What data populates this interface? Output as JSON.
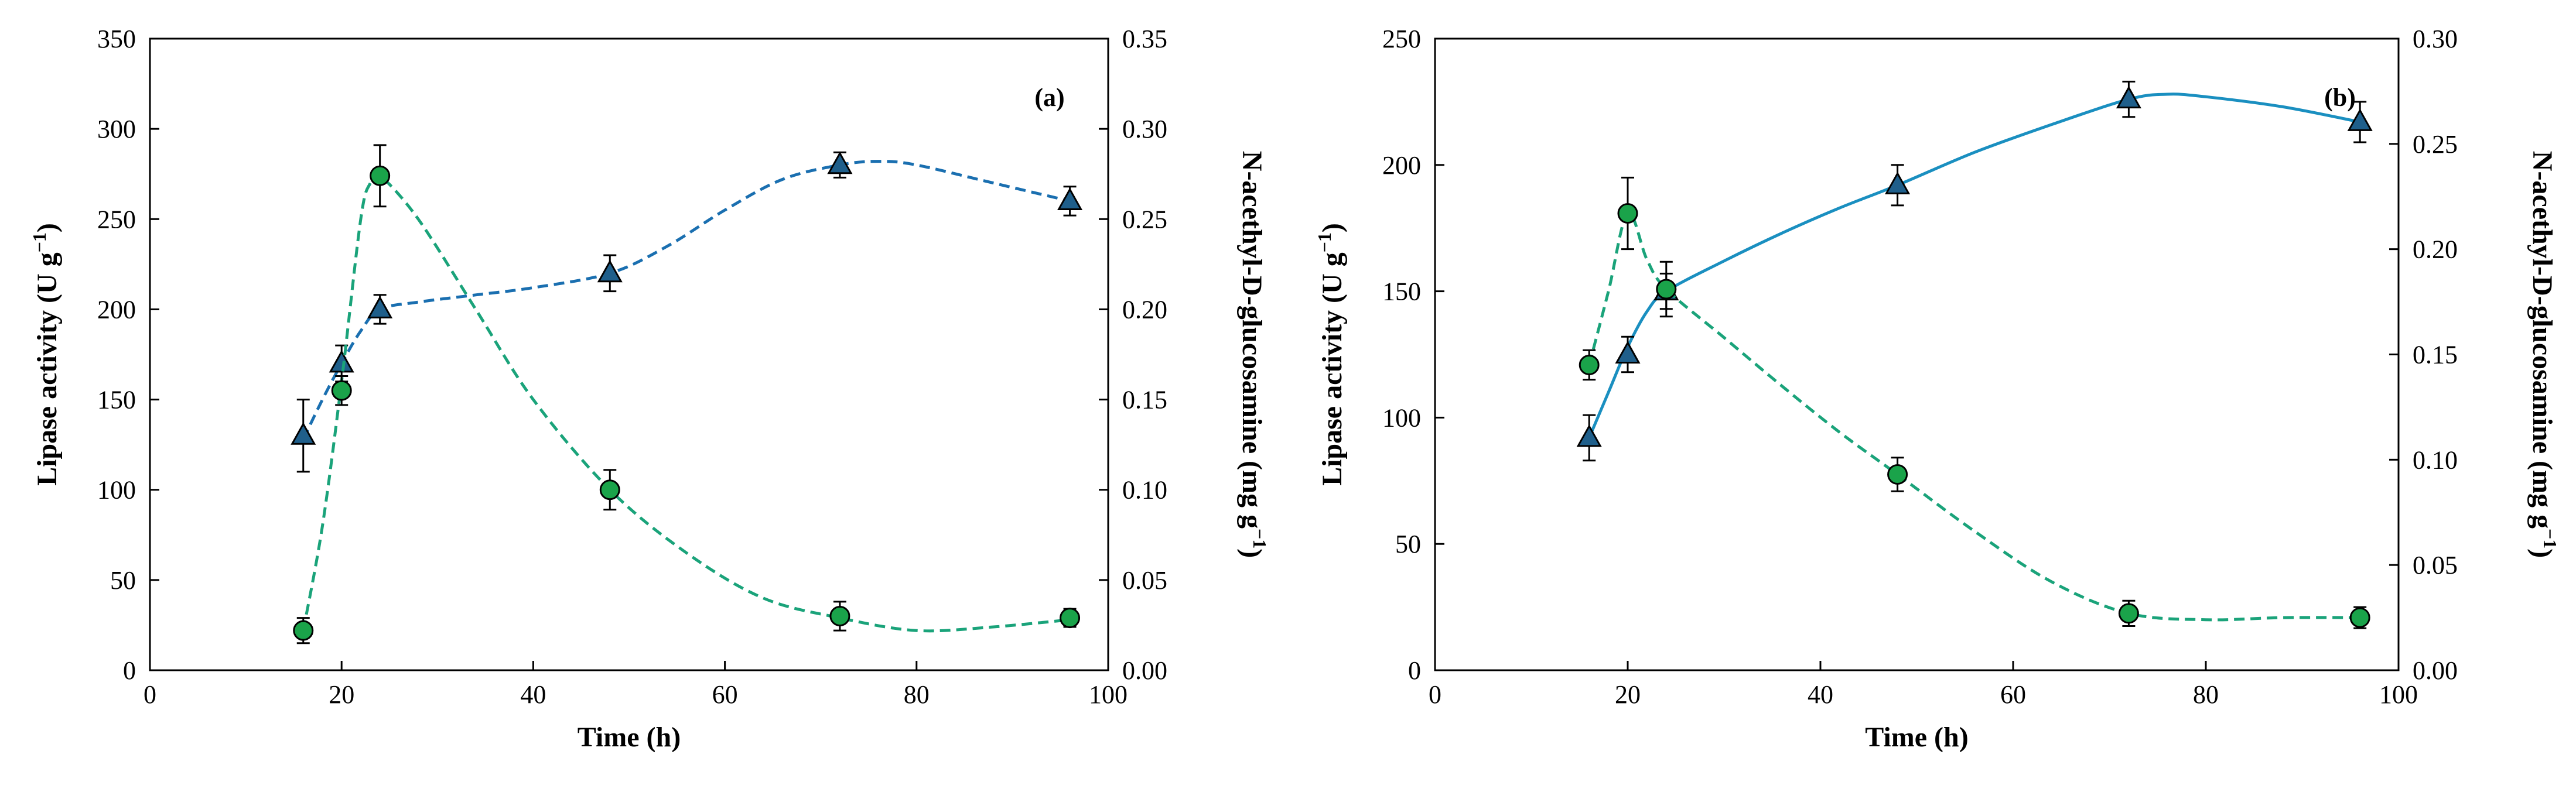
{
  "figure": {
    "colors": {
      "triangle_fill": "#1f5f8b",
      "circle_fill": "#1aa34a",
      "line_a_triangle": "#1a6fb0",
      "line_b_triangle": "#1a8fc0",
      "line_circle": "#1aa37a"
    }
  },
  "chart_data": [
    {
      "type": "scatter",
      "panel_label": "(a)",
      "xlabel": "Time (h)",
      "ylabel": "Lipase activity (U g",
      "ylabel_sup": "−1",
      "ylabel_close": ")",
      "y2label": "N-acethyl-D-glucosamine (mg g",
      "y2label_sup": "−1",
      "y2label_close": ")",
      "xlim": [
        0,
        100
      ],
      "ylim": [
        0,
        350
      ],
      "y2lim": [
        0,
        0.35
      ],
      "xticks": [
        "0",
        "20",
        "40",
        "60",
        "80",
        "100"
      ],
      "yticks": [
        "0",
        "50",
        "100",
        "150",
        "200",
        "250",
        "300",
        "350"
      ],
      "y2ticks": [
        "0.00",
        "0.05",
        "0.10",
        "0.15",
        "0.20",
        "0.25",
        "0.30",
        "0.35"
      ],
      "series": [
        {
          "name": "Lipase activity",
          "axis": "left",
          "marker": "triangle",
          "line": "dashed",
          "x": [
            16,
            20,
            24,
            48,
            72,
            96
          ],
          "y": [
            130,
            170,
            200,
            220,
            280,
            260
          ],
          "err": [
            20,
            10,
            8,
            10,
            7,
            8
          ],
          "curve": [
            [
              16,
              128
            ],
            [
              18,
              150
            ],
            [
              20,
              170
            ],
            [
              22,
              188
            ],
            [
              24,
              200
            ],
            [
              28,
              204
            ],
            [
              34,
              208
            ],
            [
              40,
              212
            ],
            [
              48,
              220
            ],
            [
              54,
              235
            ],
            [
              60,
              255
            ],
            [
              66,
              272
            ],
            [
              72,
              280
            ],
            [
              76,
              282
            ],
            [
              80,
              280
            ],
            [
              88,
              270
            ],
            [
              96,
              260
            ]
          ]
        },
        {
          "name": "N-acethyl-D-glucosamine",
          "axis": "right",
          "marker": "circle",
          "line": "dashed",
          "x": [
            16,
            20,
            24,
            48,
            72,
            96
          ],
          "y": [
            0.022,
            0.155,
            0.274,
            0.1,
            0.03,
            0.029
          ],
          "err": [
            0.007,
            0.008,
            0.017,
            0.011,
            0.008,
            0.005
          ],
          "curve": [
            [
              16,
              0.022
            ],
            [
              18,
              0.08
            ],
            [
              20,
              0.16
            ],
            [
              22,
              0.25
            ],
            [
              23,
              0.27
            ],
            [
              24,
              0.274
            ],
            [
              28,
              0.25
            ],
            [
              34,
              0.2
            ],
            [
              40,
              0.15
            ],
            [
              48,
              0.1
            ],
            [
              56,
              0.065
            ],
            [
              64,
              0.04
            ],
            [
              72,
              0.029
            ],
            [
              80,
              0.022
            ],
            [
              88,
              0.024
            ],
            [
              96,
              0.028
            ]
          ]
        }
      ]
    },
    {
      "type": "scatter",
      "panel_label": "(b)",
      "xlabel": "Time (h)",
      "ylabel": "Lipase activity (U g",
      "ylabel_sup": "−1",
      "ylabel_close": ")",
      "y2label": "N-acethyl-D-glucosamine (mg g",
      "y2label_sup": "−1",
      "y2label_close": ")",
      "xlim": [
        0,
        100
      ],
      "ylim": [
        0,
        250
      ],
      "y2lim": [
        0,
        0.3
      ],
      "xticks": [
        "0",
        "20",
        "40",
        "60",
        "80",
        "100"
      ],
      "yticks": [
        "0",
        "50",
        "100",
        "150",
        "200",
        "250"
      ],
      "y2ticks": [
        "0.00",
        "0.05",
        "0.10",
        "0.15",
        "0.20",
        "0.25",
        "0.30"
      ],
      "series": [
        {
          "name": "Lipase activity",
          "axis": "left",
          "marker": "triangle",
          "line": "solid",
          "x": [
            16,
            20,
            24,
            48,
            72,
            96
          ],
          "y": [
            92,
            125,
            150,
            192,
            226,
            217
          ],
          "err": [
            9,
            7,
            7,
            8,
            7,
            8
          ],
          "curve": [
            [
              16,
              92
            ],
            [
              18,
              110
            ],
            [
              20,
              128
            ],
            [
              22,
              142
            ],
            [
              24,
              150
            ],
            [
              30,
              162
            ],
            [
              36,
              173
            ],
            [
              42,
              183
            ],
            [
              48,
              192
            ],
            [
              56,
              205
            ],
            [
              64,
              216
            ],
            [
              72,
              226
            ],
            [
              76,
              228
            ],
            [
              80,
              227
            ],
            [
              88,
              223
            ],
            [
              96,
              217
            ]
          ]
        },
        {
          "name": "N-acethyl-D-glucosamine",
          "axis": "right",
          "marker": "circle",
          "line": "dashed",
          "x": [
            16,
            20,
            24,
            48,
            72,
            96
          ],
          "y": [
            0.145,
            0.217,
            0.181,
            0.093,
            0.027,
            0.025
          ],
          "err": [
            0.007,
            0.017,
            0.013,
            0.008,
            0.006,
            0.005
          ],
          "curve": [
            [
              16,
              0.145
            ],
            [
              18,
              0.18
            ],
            [
              20,
              0.217
            ],
            [
              22,
              0.195
            ],
            [
              24,
              0.181
            ],
            [
              30,
              0.158
            ],
            [
              36,
              0.135
            ],
            [
              42,
              0.113
            ],
            [
              48,
              0.093
            ],
            [
              56,
              0.066
            ],
            [
              64,
              0.042
            ],
            [
              72,
              0.027
            ],
            [
              80,
              0.024
            ],
            [
              88,
              0.025
            ],
            [
              96,
              0.025
            ]
          ]
        }
      ]
    }
  ]
}
